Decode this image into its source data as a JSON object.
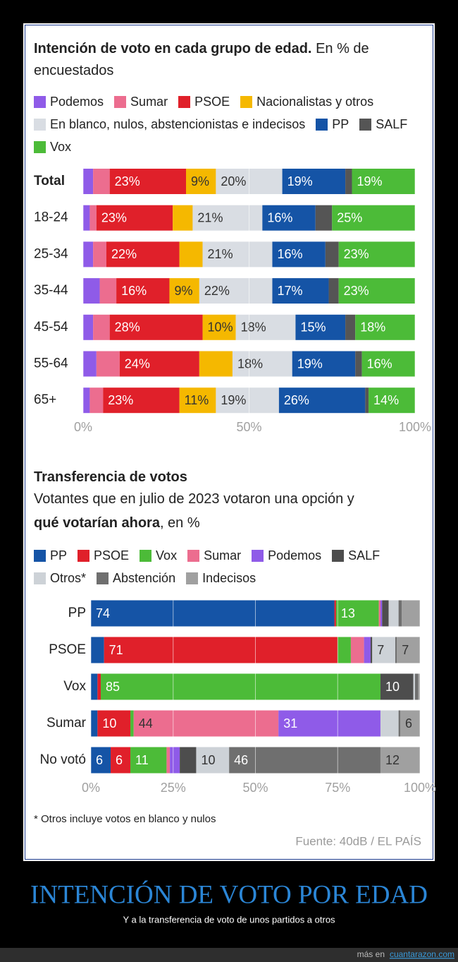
{
  "chart_data": [
    {
      "type": "bar",
      "stacked": true,
      "orientation": "horizontal",
      "title": "Intención de voto en cada grupo de edad.",
      "subtitle": "En % de encuestados",
      "categories": [
        "Total",
        "18-24",
        "25-34",
        "35-44",
        "45-54",
        "55-64",
        "65+"
      ],
      "series": [
        {
          "name": "Podemos",
          "color": "#8f5be8",
          "values": [
            3,
            2,
            3,
            5,
            3,
            4,
            2
          ],
          "value_labels": [
            null,
            null,
            null,
            null,
            null,
            null,
            null
          ]
        },
        {
          "name": "Sumar",
          "color": "#ec6d8f",
          "values": [
            5,
            2,
            4,
            5,
            5,
            7,
            4
          ],
          "value_labels": [
            null,
            null,
            null,
            null,
            null,
            null,
            null
          ]
        },
        {
          "name": "PSOE",
          "color": "#e0202a",
          "values": [
            23,
            23,
            22,
            16,
            28,
            24,
            23
          ],
          "value_labels": [
            "23%",
            "23%",
            "22%",
            "16%",
            "28%",
            "24%",
            "23%"
          ]
        },
        {
          "name": "Nacionalistas y otros",
          "color": "#f5b800",
          "values": [
            9,
            6,
            7,
            9,
            10,
            10,
            11
          ],
          "value_labels": [
            "9%",
            null,
            null,
            "9%",
            "10%",
            null,
            "11%"
          ]
        },
        {
          "name": "En blanco, nulos, abstencionistas e indecisos",
          "color": "#d9dde3",
          "values": [
            20,
            21,
            21,
            22,
            18,
            18,
            19
          ],
          "value_labels": [
            "20%",
            "21%",
            "21%",
            "22%",
            "18%",
            "18%",
            "19%"
          ]
        },
        {
          "name": "PP",
          "color": "#1554a6",
          "values": [
            19,
            16,
            16,
            17,
            15,
            19,
            26
          ],
          "value_labels": [
            "19%",
            "16%",
            "16%",
            "17%",
            "15%",
            "19%",
            "26%"
          ]
        },
        {
          "name": "SALF",
          "color": "#555555",
          "values": [
            2,
            5,
            4,
            3,
            3,
            2,
            1
          ],
          "value_labels": [
            null,
            null,
            null,
            null,
            null,
            null,
            null
          ]
        },
        {
          "name": "Vox",
          "color": "#4cbb38",
          "values": [
            19,
            25,
            23,
            23,
            18,
            16,
            14
          ],
          "value_labels": [
            "19%",
            "25%",
            "23%",
            "23%",
            "18%",
            "16%",
            "14%"
          ]
        }
      ],
      "xlim": [
        0,
        100
      ],
      "xticks": [
        {
          "value": 0,
          "label": "0%"
        },
        {
          "value": 50,
          "label": "50%"
        },
        {
          "value": 100,
          "label": "100%"
        }
      ],
      "grid": true
    },
    {
      "type": "bar",
      "stacked": true,
      "orientation": "horizontal",
      "title": "Transferencia de votos",
      "subtitle": [
        "Votantes que en julio de 2023 votaron una opción y",
        "qué votarían ahora",
        ", en %"
      ],
      "categories": [
        "PP",
        "PSOE",
        "Vox",
        "Sumar",
        "No votó"
      ],
      "series": [
        {
          "name": "PP",
          "color": "#1554a6",
          "values": [
            74,
            4,
            2,
            2,
            6
          ],
          "value_labels": [
            "74",
            null,
            null,
            null,
            "6"
          ]
        },
        {
          "name": "PSOE",
          "color": "#e0202a",
          "values": [
            0.5,
            71,
            1,
            10,
            6
          ],
          "value_labels": [
            null,
            "71",
            null,
            "10",
            "6"
          ]
        },
        {
          "name": "Vox",
          "color": "#4cbb38",
          "values": [
            13,
            4,
            85,
            1,
            11
          ],
          "value_labels": [
            "13",
            null,
            "85",
            null,
            "11"
          ]
        },
        {
          "name": "Sumar",
          "color": "#ec6d8f",
          "values": [
            0.5,
            4,
            0,
            44,
            1
          ],
          "value_labels": [
            null,
            null,
            null,
            "44",
            null
          ]
        },
        {
          "name": "Podemos",
          "color": "#8f5be8",
          "values": [
            0.5,
            2,
            0,
            31,
            3
          ],
          "value_labels": [
            null,
            null,
            null,
            "31",
            null
          ]
        },
        {
          "name": "SALF",
          "color": "#4d4d4d",
          "values": [
            2,
            0.5,
            10,
            0,
            5
          ],
          "value_labels": [
            null,
            null,
            "10",
            null,
            null
          ]
        },
        {
          "name": "Otros*",
          "color": "#cdd2d7",
          "values": [
            3,
            7,
            0.5,
            5.5,
            10
          ],
          "value_labels": [
            null,
            "7",
            null,
            null,
            "10"
          ]
        },
        {
          "name": "Abstención",
          "color": "#6f6f6f",
          "values": [
            1,
            0.5,
            1,
            0.5,
            46
          ],
          "value_labels": [
            null,
            null,
            null,
            null,
            "46"
          ]
        },
        {
          "name": "Indecisos",
          "color": "#a0a0a0",
          "values": [
            5.5,
            7,
            0.5,
            6,
            12
          ],
          "value_labels": [
            null,
            "7",
            null,
            "6",
            "12"
          ]
        }
      ],
      "xlim": [
        0,
        100
      ],
      "xticks": [
        {
          "value": 0,
          "label": "0%"
        },
        {
          "value": 25,
          "label": "25%"
        },
        {
          "value": 50,
          "label": "50%"
        },
        {
          "value": 75,
          "label": "75%"
        },
        {
          "value": 100,
          "label": "100%"
        }
      ],
      "grid": true
    }
  ],
  "footnote": "* Otros incluye votos en blanco y nulos",
  "source": "Fuente: 40dB / EL PAÍS",
  "caption": {
    "title": "INTENCIÓN DE VOTO POR EDAD",
    "subtitle": "Y a la transferencia de voto de unos partidos a otros"
  },
  "footer": {
    "text": "más en",
    "link": "cuantarazon.com"
  }
}
